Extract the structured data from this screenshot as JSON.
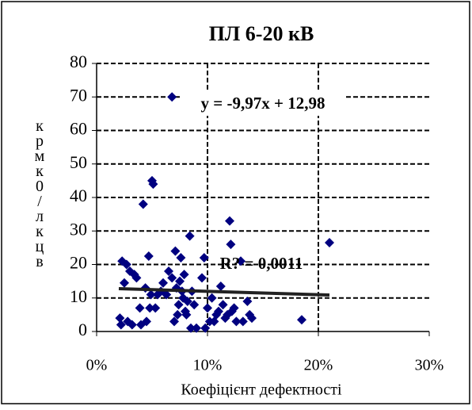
{
  "chart_data": {
    "type": "scatter",
    "title": "ПЛ 6-20 кВ",
    "x_label": "Коефіцієнт дефектності",
    "y_label": "крмк0/лкцв",
    "xlim": [
      0,
      30
    ],
    "xticks": [
      {
        "value": 0,
        "label": "0%"
      },
      {
        "value": 10,
        "label": "10%"
      },
      {
        "value": 20,
        "label": "20%"
      },
      {
        "value": 30,
        "label": "30%"
      }
    ],
    "ylim": [
      0,
      80
    ],
    "yticks": [
      0,
      10,
      20,
      30,
      40,
      50,
      60,
      70,
      80
    ],
    "grid": true,
    "series": [
      {
        "color": "#000080",
        "x": [
          2.1,
          2.2,
          2.3,
          2.5,
          2.7,
          2.8,
          3.0,
          3.2,
          3.4,
          3.6,
          3.9,
          4.0,
          4.2,
          4.4,
          4.5,
          4.7,
          4.8,
          4.9,
          5.0,
          5.1,
          5.3,
          5.5,
          5.8,
          6.0,
          6.3,
          6.5,
          6.8,
          7.0,
          7.1,
          7.2,
          7.3,
          7.4,
          7.5,
          7.6,
          7.7,
          7.8,
          7.9,
          8.0,
          8.1,
          8.2,
          8.4,
          8.5,
          8.6,
          8.8,
          9.0,
          9.5,
          9.7,
          9.8,
          10.0,
          10.2,
          10.4,
          10.6,
          10.8,
          11.0,
          11.2,
          11.4,
          11.6,
          11.8,
          12.0,
          12.1,
          12.2,
          12.4,
          12.6,
          13.0,
          13.2,
          13.6,
          13.8,
          14.0,
          18.5,
          21.0,
          6.8
        ],
        "values": [
          4,
          2,
          21,
          14.5,
          20,
          3,
          18,
          2,
          17,
          16,
          7,
          2,
          38,
          13,
          3,
          22.5,
          7,
          11,
          45,
          44,
          7,
          11,
          12,
          14.5,
          11,
          18,
          16,
          3,
          24,
          13,
          5,
          8,
          15,
          22,
          12,
          10,
          17,
          6,
          5,
          9,
          28.5,
          1,
          12,
          8,
          1,
          16,
          22,
          1,
          7,
          3,
          10,
          3,
          5,
          6,
          13.5,
          8,
          4,
          5,
          33,
          26,
          6,
          7,
          3,
          21,
          3,
          9,
          5,
          4,
          3.5,
          26.5,
          70
        ]
      },
      {
        "color": "#222222",
        "x": [
          2,
          21
        ],
        "values": [
          12.78,
          10.89
        ]
      }
    ],
    "annotations": [
      "y = -9,97x + 12,98",
      "R? = 0,0011"
    ]
  }
}
